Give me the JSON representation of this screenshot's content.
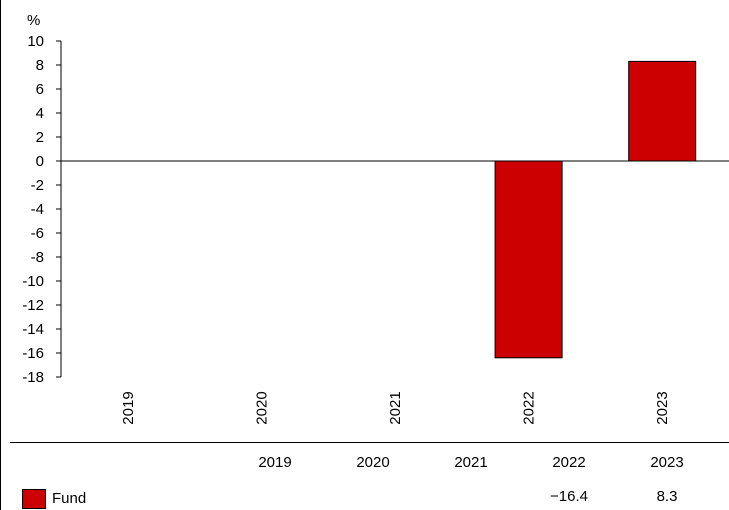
{
  "chart_data": {
    "type": "bar",
    "categories": [
      "2019",
      "2020",
      "2021",
      "2022",
      "2023"
    ],
    "series": [
      {
        "name": "Fund",
        "values": [
          null,
          null,
          null,
          -16.4,
          8.3
        ],
        "color": "#cc0000"
      }
    ],
    "ylabel": "%",
    "ylim": [
      -18,
      10
    ],
    "yticks": [
      "10",
      "8",
      "6",
      "4",
      "2",
      "0",
      "-2",
      "-4",
      "-6",
      "-8",
      "-10",
      "-12",
      "-14",
      "-16",
      "-18"
    ],
    "grid": false,
    "legend": "bottom-left"
  },
  "table": {
    "headers": [
      "2019",
      "2020",
      "2021",
      "2022",
      "2023"
    ],
    "rows": [
      {
        "label": "Fund",
        "values": [
          "",
          "",
          "",
          "−16.4",
          "8.3"
        ]
      }
    ]
  }
}
